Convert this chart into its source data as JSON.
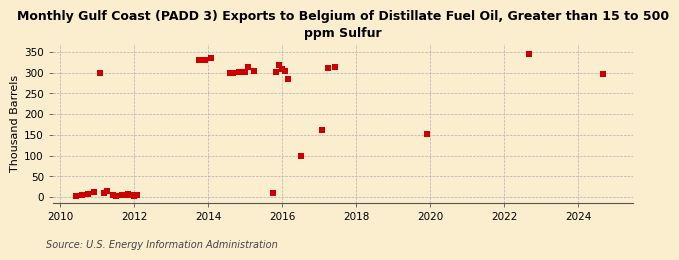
{
  "title": "Monthly Gulf Coast (PADD 3) Exports to Belgium of Distillate Fuel Oil, Greater than 15 to 500\nppm Sulfur",
  "ylabel": "Thousand Barrels",
  "source": "Source: U.S. Energy Information Administration",
  "background_color": "#faeece",
  "plot_background_color": "#faeece",
  "marker_color": "#cc0000",
  "marker_size": 4,
  "xlim": [
    2009.8,
    2025.5
  ],
  "ylim": [
    -15,
    370
  ],
  "yticks": [
    0,
    50,
    100,
    150,
    200,
    250,
    300,
    350
  ],
  "xticks": [
    2010,
    2012,
    2014,
    2016,
    2018,
    2020,
    2022,
    2024
  ],
  "data_points": [
    [
      2010.42,
      2
    ],
    [
      2010.58,
      4
    ],
    [
      2010.75,
      8
    ],
    [
      2010.92,
      11
    ],
    [
      2011.08,
      300
    ],
    [
      2011.17,
      10
    ],
    [
      2011.25,
      14
    ],
    [
      2011.42,
      5
    ],
    [
      2011.5,
      3
    ],
    [
      2011.67,
      4
    ],
    [
      2011.75,
      5
    ],
    [
      2011.83,
      8
    ],
    [
      2011.92,
      4
    ],
    [
      2012.0,
      3
    ],
    [
      2012.08,
      4
    ],
    [
      2013.75,
      330
    ],
    [
      2013.92,
      330
    ],
    [
      2014.08,
      335
    ],
    [
      2014.58,
      300
    ],
    [
      2014.67,
      300
    ],
    [
      2014.83,
      302
    ],
    [
      2015.0,
      303
    ],
    [
      2015.08,
      315
    ],
    [
      2015.25,
      305
    ],
    [
      2015.75,
      10
    ],
    [
      2015.83,
      302
    ],
    [
      2015.92,
      318
    ],
    [
      2016.0,
      308
    ],
    [
      2016.08,
      305
    ],
    [
      2016.17,
      285
    ],
    [
      2016.5,
      100
    ],
    [
      2017.08,
      163
    ],
    [
      2017.25,
      312
    ],
    [
      2017.42,
      313
    ],
    [
      2019.92,
      152
    ],
    [
      2022.67,
      345
    ],
    [
      2024.67,
      298
    ]
  ]
}
